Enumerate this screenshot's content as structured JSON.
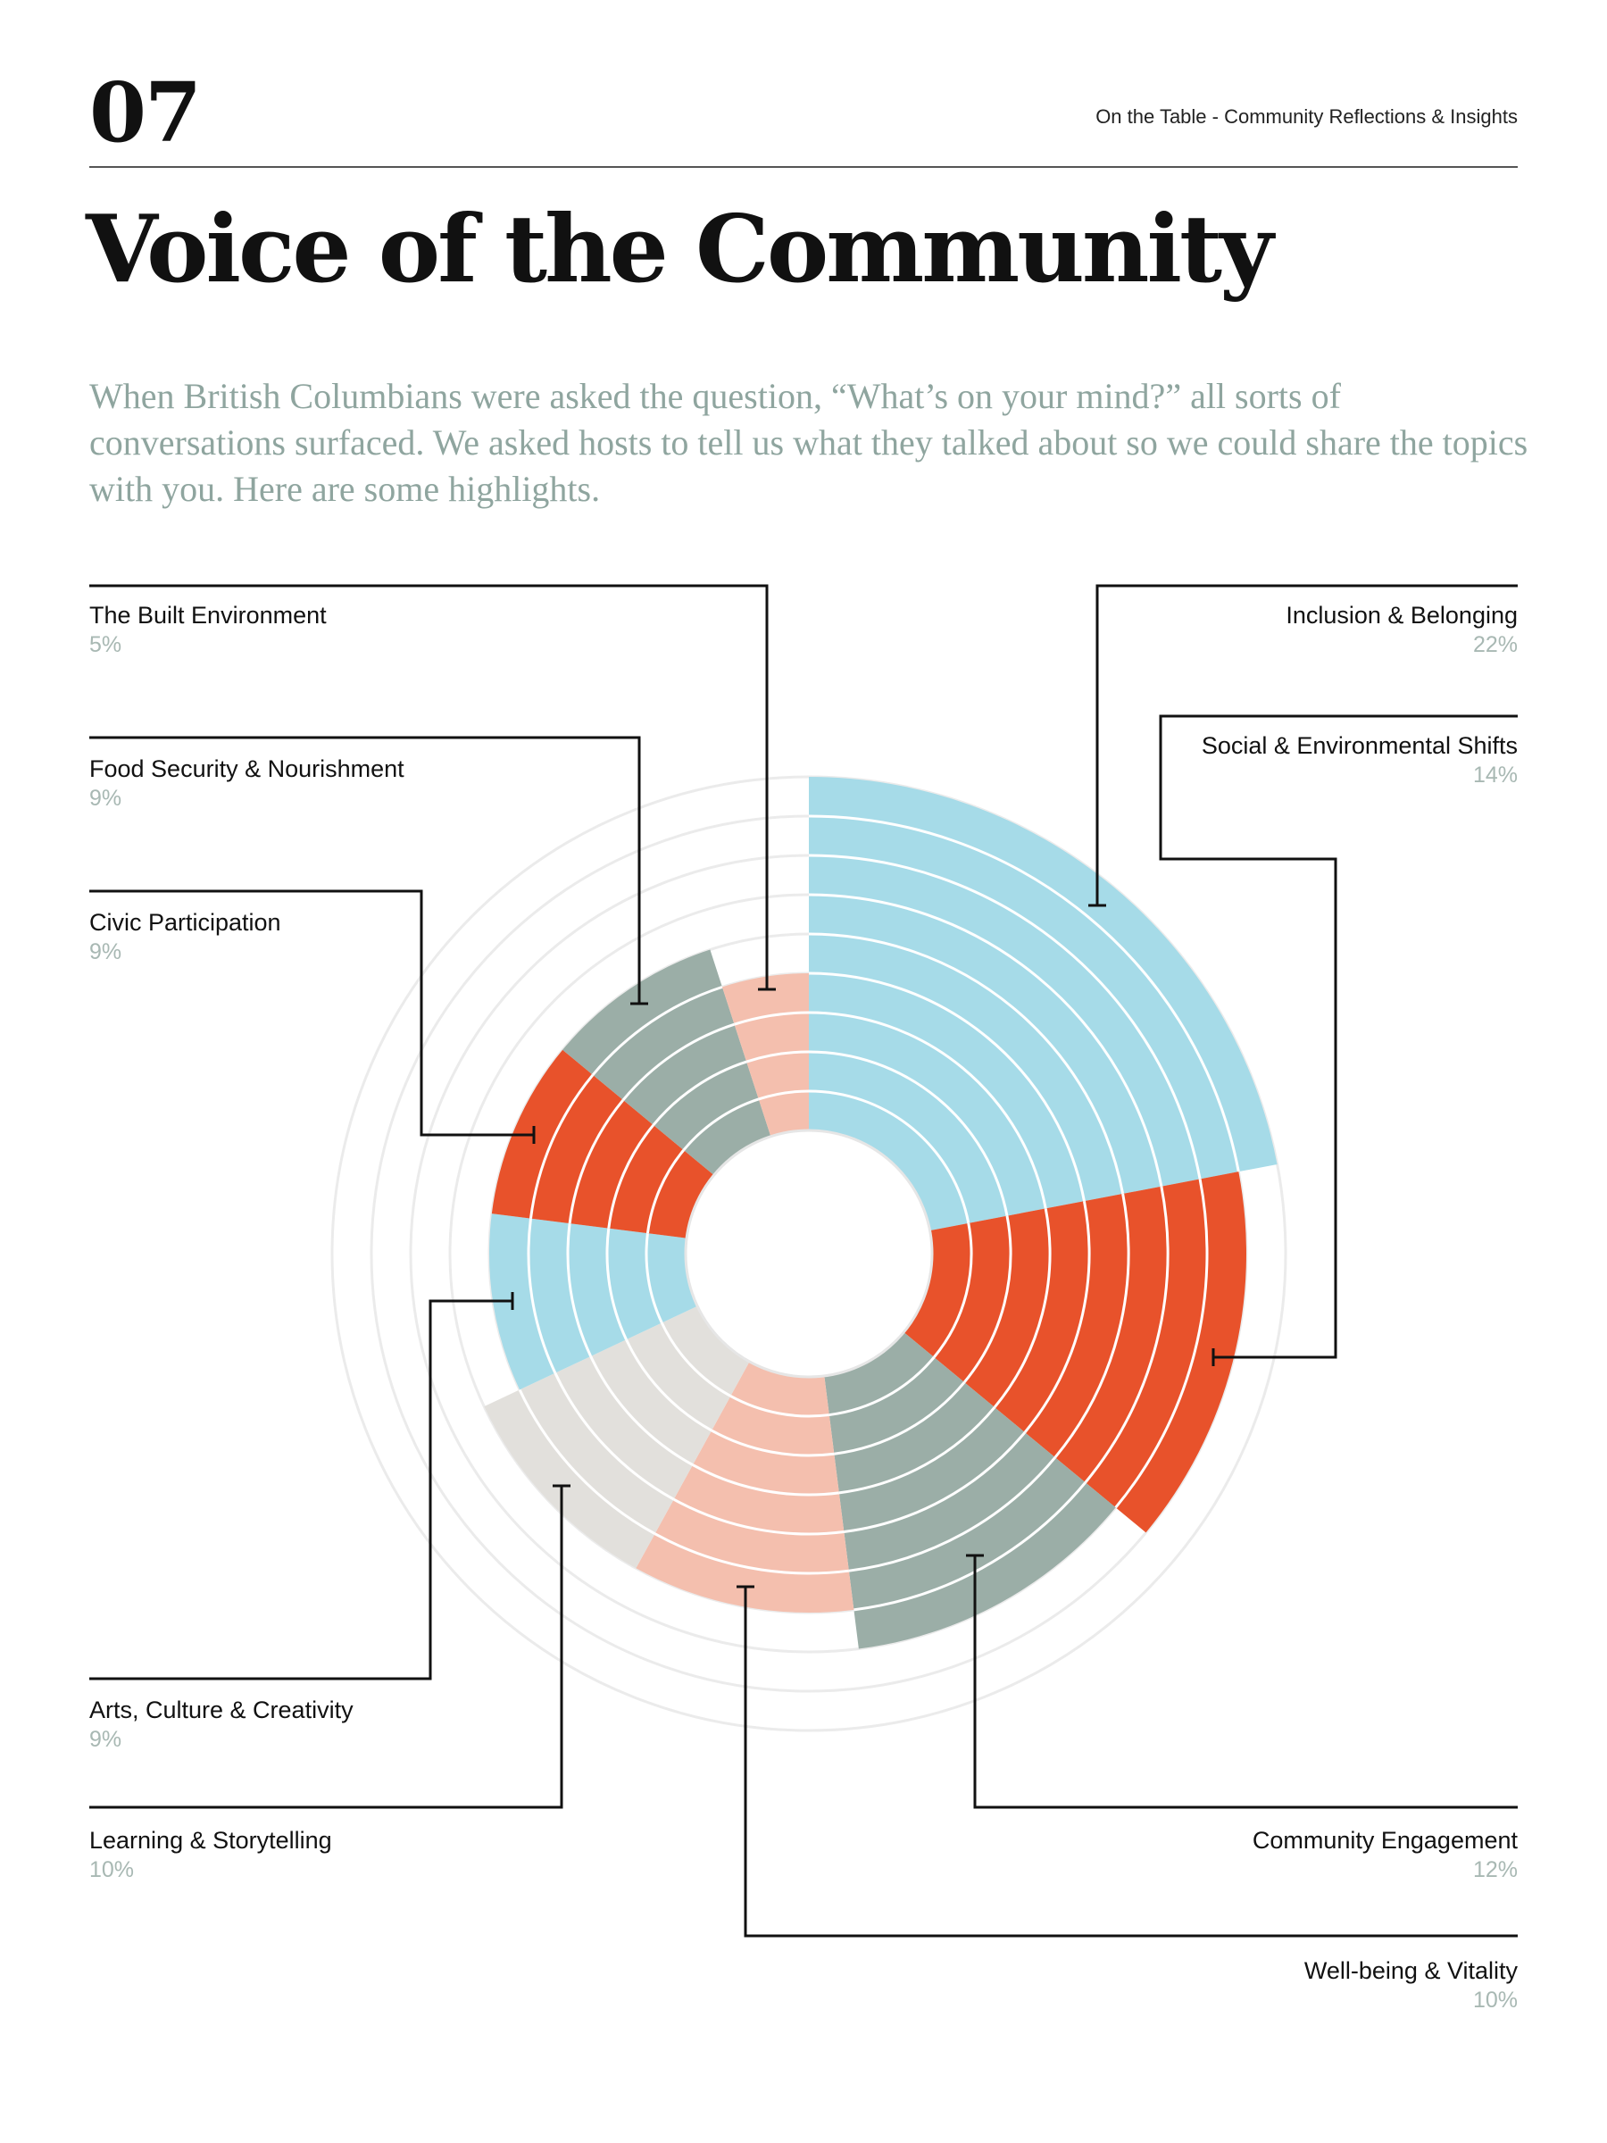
{
  "header": {
    "page_number": "07",
    "running_title": "On the Table - Community Reflections & Insights"
  },
  "title": "Voice of the Community",
  "intro": "When British Columbians were asked the question, “What’s on your mind?” all sorts of conversations surfaced. We asked hosts to tell us what they talked about so we could share the topics with you. Here are some highlights.",
  "colors": {
    "blue": "#a6dbe8",
    "orange": "#e8522b",
    "gray_green": "#9baea7",
    "peach": "#f4bfae",
    "light_gray": "#e2e0dc",
    "guide_ring": "#ebebeb",
    "leader_line": "#111111",
    "percent_text": "#a8b8b3"
  },
  "chart_data": {
    "type": "radial_bar",
    "title": "",
    "unit": "%",
    "categories": [
      {
        "name": "Inclusion & Belonging",
        "value": 22,
        "display": "22%",
        "color": "blue"
      },
      {
        "name": "Social & Environmental Shifts",
        "value": 14,
        "display": "14%",
        "color": "orange"
      },
      {
        "name": "Community Engagement",
        "value": 12,
        "display": "12%",
        "color": "gray_green"
      },
      {
        "name": "Well-being & Vitality",
        "value": 10,
        "display": "10%",
        "color": "peach"
      },
      {
        "name": "Learning & Storytelling",
        "value": 10,
        "display": "10%",
        "color": "light_gray"
      },
      {
        "name": "Arts, Culture & Creativity",
        "value": 9,
        "display": "9%",
        "color": "blue"
      },
      {
        "name": "Civic Participation",
        "value": 9,
        "display": "9%",
        "color": "orange"
      },
      {
        "name": "Food Security & Nourishment",
        "value": 9,
        "display": "9%",
        "color": "gray_green"
      },
      {
        "name": "The Built Environment",
        "value": 5,
        "display": "5%",
        "color": "peach"
      }
    ]
  }
}
